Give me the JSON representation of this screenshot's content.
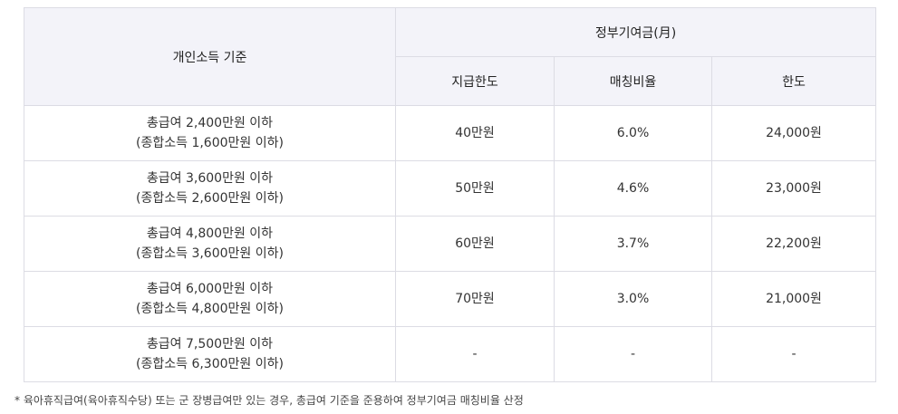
{
  "table": {
    "header": {
      "criterion": "개인소득 기준",
      "group": "정부기여금(月)",
      "sub": [
        "지급한도",
        "매칭비율",
        "한도"
      ]
    },
    "rows": [
      {
        "income": [
          "총급여 2,400만원 이하",
          "(종합소득 1,600만원 이하)"
        ],
        "cells": [
          "40만원",
          "6.0%",
          "24,000원"
        ]
      },
      {
        "income": [
          "총급여 3,600만원 이하",
          "(종합소득 2,600만원 이하)"
        ],
        "cells": [
          "50만원",
          "4.6%",
          "23,000원"
        ]
      },
      {
        "income": [
          "총급여 4,800만원 이하",
          "(종합소득 3,600만원 이하)"
        ],
        "cells": [
          "60만원",
          "3.7%",
          "22,200원"
        ]
      },
      {
        "income": [
          "총급여 6,000만원 이하",
          "(종합소득 4,800만원 이하)"
        ],
        "cells": [
          "70만원",
          "3.0%",
          "21,000원"
        ]
      },
      {
        "income": [
          "총급여 7,500만원 이하",
          "(종합소득 6,300만원 이하)"
        ],
        "cells": [
          "-",
          "-",
          "-"
        ]
      }
    ]
  },
  "footnote": "* 육아휴직급여(육아휴직수당) 또는 군 장병급여만 있는 경우, 총급여 기준을 준용하여 정부기여금 매칭비율 산정"
}
